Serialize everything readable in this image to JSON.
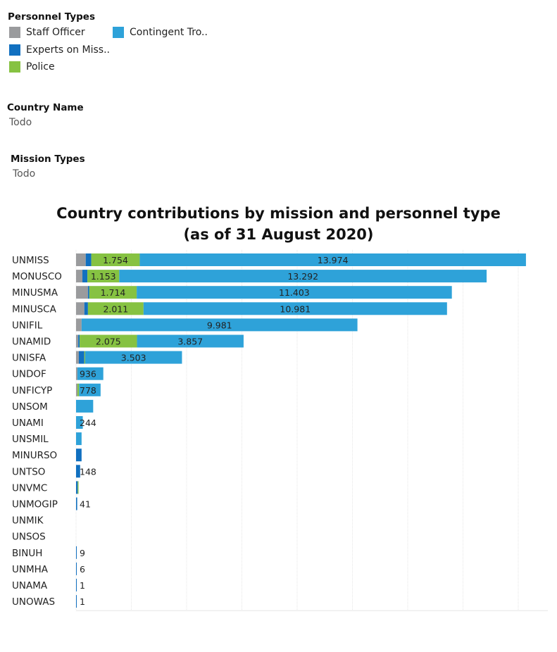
{
  "legend": {
    "title": "Personnel Types",
    "items": [
      {
        "key": "staff",
        "label": "Staff Officer",
        "color": "#9a9b9d"
      },
      {
        "key": "experts",
        "label": "Experts on Miss..",
        "color": "#1170c0"
      },
      {
        "key": "police",
        "label": "Police",
        "color": "#86c242"
      },
      {
        "key": "contingent",
        "label": "Contingent Tro..",
        "color": "#2ea2d9"
      }
    ]
  },
  "filters": {
    "country": {
      "label": "Country Name",
      "value": "Todo"
    },
    "mission": {
      "label": "Mission Types",
      "value": "Todo"
    }
  },
  "chart_data": {
    "type": "bar",
    "orientation": "horizontal",
    "stacked": true,
    "title": "Country contributions by mission and personnel type",
    "subtitle": "(as of 31 August 2020)",
    "xlim": [
      0,
      17000
    ],
    "grid": true,
    "categories": [
      "UNMISS",
      "MONUSCO",
      "MINUSMA",
      "MINUSCA",
      "UNIFIL",
      "UNAMID",
      "UNISFA",
      "UNDOF",
      "UNFICYP",
      "UNSOM",
      "UNAMI",
      "UNSMIL",
      "MINURSO",
      "UNTSO",
      "UNVMC",
      "UNMOGIP",
      "UNMIK",
      "UNSOS",
      "BINUH",
      "UNMHA",
      "UNAMA",
      "UNOWAS"
    ],
    "series": [
      {
        "name": "Staff Officer",
        "key": "staff",
        "values": [
          350,
          230,
          430,
          300,
          200,
          80,
          100,
          50,
          50,
          0,
          0,
          0,
          0,
          0,
          0,
          0,
          0,
          0,
          0,
          0,
          0,
          0
        ]
      },
      {
        "name": "Experts on Miss..",
        "key": "experts",
        "values": [
          200,
          180,
          50,
          130,
          0,
          50,
          200,
          0,
          0,
          0,
          0,
          0,
          200,
          148,
          60,
          41,
          0,
          0,
          9,
          6,
          1,
          1
        ]
      },
      {
        "name": "Police",
        "key": "police",
        "values": [
          1754,
          1153,
          1714,
          2011,
          0,
          2075,
          30,
          0,
          60,
          0,
          0,
          0,
          0,
          0,
          30,
          0,
          0,
          0,
          0,
          0,
          0,
          0
        ]
      },
      {
        "name": "Contingent Tro..",
        "key": "contingent",
        "values": [
          13974,
          13292,
          11403,
          10981,
          9981,
          3857,
          3503,
          936,
          778,
          620,
          244,
          200,
          0,
          0,
          0,
          0,
          0,
          0,
          0,
          0,
          0,
          0
        ]
      }
    ],
    "data_labels": [
      [
        {
          "series": "police",
          "text": "1.754"
        },
        {
          "series": "contingent",
          "text": "13.974"
        }
      ],
      [
        {
          "series": "police",
          "text": "1.153"
        },
        {
          "series": "contingent",
          "text": "13.292"
        }
      ],
      [
        {
          "series": "police",
          "text": "1.714"
        },
        {
          "series": "contingent",
          "text": "11.403"
        }
      ],
      [
        {
          "series": "police",
          "text": "2.011"
        },
        {
          "series": "contingent",
          "text": "10.981"
        }
      ],
      [
        {
          "series": "contingent",
          "text": "9.981"
        }
      ],
      [
        {
          "series": "police",
          "text": "2.075"
        },
        {
          "series": "contingent",
          "text": "3.857"
        }
      ],
      [
        {
          "series": "contingent",
          "text": "3.503"
        }
      ],
      [
        {
          "series": "contingent",
          "text": "936"
        }
      ],
      [
        {
          "series": "contingent",
          "text": "778"
        }
      ],
      [],
      [
        {
          "series": "contingent",
          "text": "244"
        }
      ],
      [],
      [],
      [
        {
          "series": "experts",
          "text": "148"
        }
      ],
      [],
      [
        {
          "series": "experts",
          "text": "41"
        }
      ],
      [],
      [],
      [
        {
          "series": "experts",
          "text": "9"
        }
      ],
      [
        {
          "series": "experts",
          "text": "6"
        }
      ],
      [
        {
          "series": "experts",
          "text": "1"
        }
      ],
      [
        {
          "series": "experts",
          "text": "1"
        }
      ]
    ]
  }
}
